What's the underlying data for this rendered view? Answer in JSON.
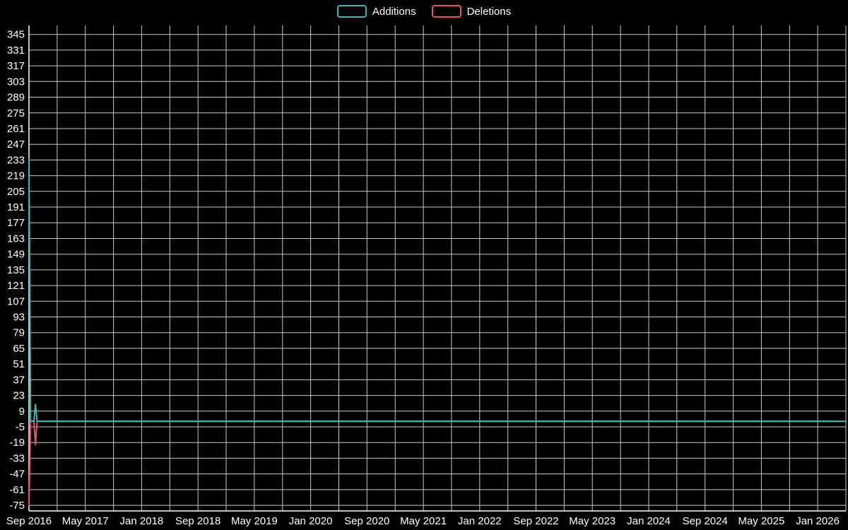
{
  "colors": {
    "background": "#000000",
    "grid": "#c9c9c9",
    "axis": "#ffffff",
    "text": "#ffffff"
  },
  "legend": {
    "items": [
      {
        "label": "Additions",
        "color": "#3cb8b8"
      },
      {
        "label": "Deletions",
        "color": "#e8516f"
      }
    ]
  },
  "chart_data": {
    "type": "line",
    "title": "",
    "xlabel": "",
    "ylabel": "",
    "grid": true,
    "legend_position": "top-center",
    "x_axis": {
      "tick_labels": [
        "Sep 2016",
        "May 2017",
        "Jan 2018",
        "Sep 2018",
        "May 2019",
        "Jan 2020",
        "Sep 2020",
        "May 2021",
        "Jan 2022",
        "Sep 2022",
        "May 2023",
        "Jan 2024",
        "Sep 2024",
        "May 2025",
        "Jan 2026"
      ],
      "label_interval_months": 8,
      "grid_interval_months": 4,
      "total_months": 116,
      "total_weeks": 504
    },
    "y_axis": {
      "tick_values": [
        345,
        331,
        317,
        303,
        289,
        275,
        261,
        247,
        233,
        219,
        205,
        191,
        177,
        163,
        149,
        135,
        121,
        107,
        93,
        79,
        65,
        51,
        37,
        23,
        9,
        -5,
        -19,
        -33,
        -47,
        -61,
        -75
      ],
      "min": -80,
      "max": 353
    },
    "series": [
      {
        "name": "Additions",
        "color": "#3cb8b8",
        "unit": "week",
        "default_value": 0,
        "points": [
          {
            "week": 0,
            "value": 234
          },
          {
            "week": 4,
            "value": 15
          }
        ]
      },
      {
        "name": "Deletions",
        "color": "#e8516f",
        "unit": "week",
        "default_value": 0,
        "points": [
          {
            "week": 0,
            "value": -75
          },
          {
            "week": 4,
            "value": -21
          }
        ]
      }
    ]
  }
}
